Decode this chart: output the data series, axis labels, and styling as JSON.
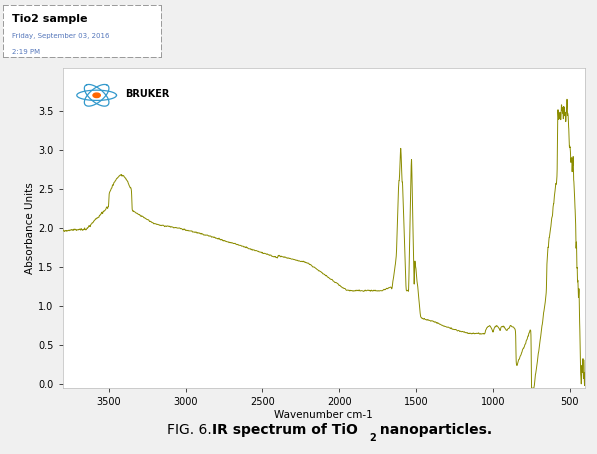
{
  "xlabel": "Wavenumber cm-1",
  "ylabel": "Absorbance Units",
  "xlim": [
    3800,
    400
  ],
  "ylim": [
    -0.05,
    4.05
  ],
  "ytick_vals": [
    0.0,
    0.5,
    1.0,
    1.5,
    2.0,
    2.5,
    3.0,
    3.5
  ],
  "ytick_labels": [
    "0.0",
    "0.5",
    "1.0",
    "1.5",
    "2.0",
    "2.5",
    "3.0",
    "3.5"
  ],
  "xtick_vals": [
    3500,
    3000,
    2500,
    2000,
    1500,
    1000,
    500
  ],
  "line_color": "#8B8C00",
  "bg_color": "#f0f0f0",
  "plot_bg": "#ffffff",
  "header_title": "Tio2 sample",
  "header_date": "Friday, September 03, 2016",
  "header_time": "2:19 PM",
  "caption_normal": "FIG. 6. ",
  "caption_bold": "IR spectrum of TiO",
  "caption_sub": "2",
  "caption_bold2": " nanoparticles."
}
